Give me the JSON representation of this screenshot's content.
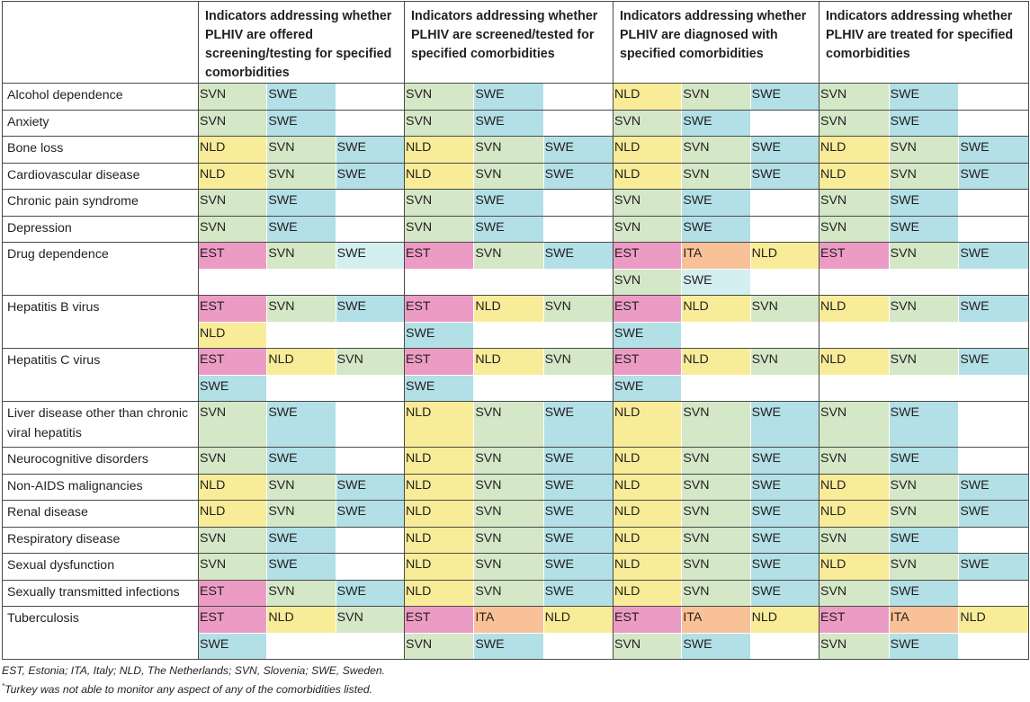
{
  "headers": [
    "Indicators addressing whether PLHIV are offered screening/testing for specified comorbidities",
    "Indicators addressing whether PLHIV are screened/tested for specified comorbidities",
    "Indicators addressing whether PLHIV are diagnosed with specified comorbidities",
    "Indicators addressing whether PLHIV are treated for specified comorbidities"
  ],
  "colors": {
    "EST": "#ec9cc4",
    "NLD": "#f8ec98",
    "SVN": "#d4e7c6",
    "SWE": "#b3dfe6",
    "ITA": "#f9c197",
    "border": "#4a4a4a"
  },
  "rows": [
    {
      "label": "Alcohol dependence",
      "groups": [
        [
          "SVN",
          "SWE"
        ],
        [
          "SVN",
          "SWE"
        ],
        [
          "NLD",
          "SVN",
          "SWE"
        ],
        [
          "SVN",
          "SWE"
        ]
      ]
    },
    {
      "label": "Anxiety",
      "groups": [
        [
          "SVN",
          "SWE"
        ],
        [
          "SVN",
          "SWE"
        ],
        [
          "SVN",
          "SWE"
        ],
        [
          "SVN",
          "SWE"
        ]
      ]
    },
    {
      "label": "Bone loss",
      "groups": [
        [
          "NLD",
          "SVN",
          "SWE"
        ],
        [
          "NLD",
          "SVN",
          "SWE"
        ],
        [
          "NLD",
          "SVN",
          "SWE"
        ],
        [
          "NLD",
          "SVN",
          "SWE"
        ]
      ]
    },
    {
      "label": "Cardiovascular disease",
      "groups": [
        [
          "NLD",
          "SVN",
          "SWE"
        ],
        [
          "NLD",
          "SVN",
          "SWE"
        ],
        [
          "NLD",
          "SVN",
          "SWE"
        ],
        [
          "NLD",
          "SVN",
          "SWE"
        ]
      ]
    },
    {
      "label": "Chronic pain syndrome",
      "groups": [
        [
          "SVN",
          "SWE"
        ],
        [
          "SVN",
          "SWE"
        ],
        [
          "SVN",
          "SWE"
        ],
        [
          "SVN",
          "SWE"
        ]
      ]
    },
    {
      "label": "Depression",
      "groups": [
        [
          "SVN",
          "SWE"
        ],
        [
          "SVN",
          "SWE"
        ],
        [
          "SVN",
          "SWE"
        ],
        [
          "SVN",
          "SWE"
        ]
      ]
    },
    {
      "label": "Drug dependence",
      "lines": 2,
      "groups": [
        [
          "EST",
          "SVN",
          "SWE"
        ],
        [
          "EST",
          "SVN",
          "SWE"
        ],
        [
          "EST",
          "ITA",
          "NLD",
          "SVN",
          "SWE"
        ],
        [
          "EST",
          "SVN",
          "SWE"
        ]
      ]
    },
    {
      "label": "Hepatitis B virus",
      "lines": 2,
      "groups": [
        [
          "EST",
          "SVN",
          "SWE",
          "NLD"
        ],
        [
          "EST",
          "NLD",
          "SVN",
          "SWE"
        ],
        [
          "EST",
          "NLD",
          "SVN",
          "SWE"
        ],
        [
          "NLD",
          "SVN",
          "SWE"
        ]
      ]
    },
    {
      "label": "Hepatitis C virus",
      "lines": 2,
      "groups": [
        [
          "EST",
          "NLD",
          "SVN",
          "SWE"
        ],
        [
          "EST",
          "NLD",
          "SVN",
          "SWE"
        ],
        [
          "EST",
          "NLD",
          "SVN",
          "SWE"
        ],
        [
          "NLD",
          "SVN",
          "SWE"
        ]
      ]
    },
    {
      "label": "Liver disease other than chronic viral hepatitis",
      "tall": true,
      "groups": [
        [
          "SVN",
          "SWE"
        ],
        [
          "NLD",
          "SVN",
          "SWE"
        ],
        [
          "NLD",
          "SVN",
          "SWE"
        ],
        [
          "SVN",
          "SWE"
        ]
      ]
    },
    {
      "label": "Neurocognitive disorders",
      "groups": [
        [
          "SVN",
          "SWE"
        ],
        [
          "NLD",
          "SVN",
          "SWE"
        ],
        [
          "NLD",
          "SVN",
          "SWE"
        ],
        [
          "SVN",
          "SWE"
        ]
      ]
    },
    {
      "label": "Non-AIDS malignancies",
      "groups": [
        [
          "NLD",
          "SVN",
          "SWE"
        ],
        [
          "NLD",
          "SVN",
          "SWE"
        ],
        [
          "NLD",
          "SVN",
          "SWE"
        ],
        [
          "NLD",
          "SVN",
          "SWE"
        ]
      ]
    },
    {
      "label": "Renal disease",
      "groups": [
        [
          "NLD",
          "SVN",
          "SWE"
        ],
        [
          "NLD",
          "SVN",
          "SWE"
        ],
        [
          "NLD",
          "SVN",
          "SWE"
        ],
        [
          "NLD",
          "SVN",
          "SWE"
        ]
      ]
    },
    {
      "label": "Respiratory disease",
      "groups": [
        [
          "SVN",
          "SWE"
        ],
        [
          "NLD",
          "SVN",
          "SWE"
        ],
        [
          "NLD",
          "SVN",
          "SWE"
        ],
        [
          "SVN",
          "SWE"
        ]
      ]
    },
    {
      "label": "Sexual dysfunction",
      "groups": [
        [
          "SVN",
          "SWE"
        ],
        [
          "NLD",
          "SVN",
          "SWE"
        ],
        [
          "NLD",
          "SVN",
          "SWE"
        ],
        [
          "NLD",
          "SVN",
          "SWE"
        ]
      ]
    },
    {
      "label": "Sexually transmitted infections",
      "groups": [
        [
          "EST",
          "SVN",
          "SWE"
        ],
        [
          "NLD",
          "SVN",
          "SWE"
        ],
        [
          "NLD",
          "SVN",
          "SWE"
        ],
        [
          "SVN",
          "SWE"
        ]
      ]
    },
    {
      "label": "Tuberculosis",
      "lines": 2,
      "groups": [
        [
          "EST",
          "NLD",
          "SVN",
          "SWE"
        ],
        [
          "EST",
          "ITA",
          "NLD",
          "SVN",
          "SWE"
        ],
        [
          "EST",
          "ITA",
          "NLD",
          "SVN",
          "SWE"
        ],
        [
          "EST",
          "ITA",
          "NLD",
          "SVN",
          "SWE"
        ]
      ]
    }
  ],
  "footnotes": {
    "abbreviations": "EST, Estonia; ITA, Italy; NLD, The Netherlands; SVN, Slovenia; SWE, Sweden.",
    "marker": "*",
    "note": "Turkey was not able to monitor any aspect of any of the comorbidities listed."
  }
}
